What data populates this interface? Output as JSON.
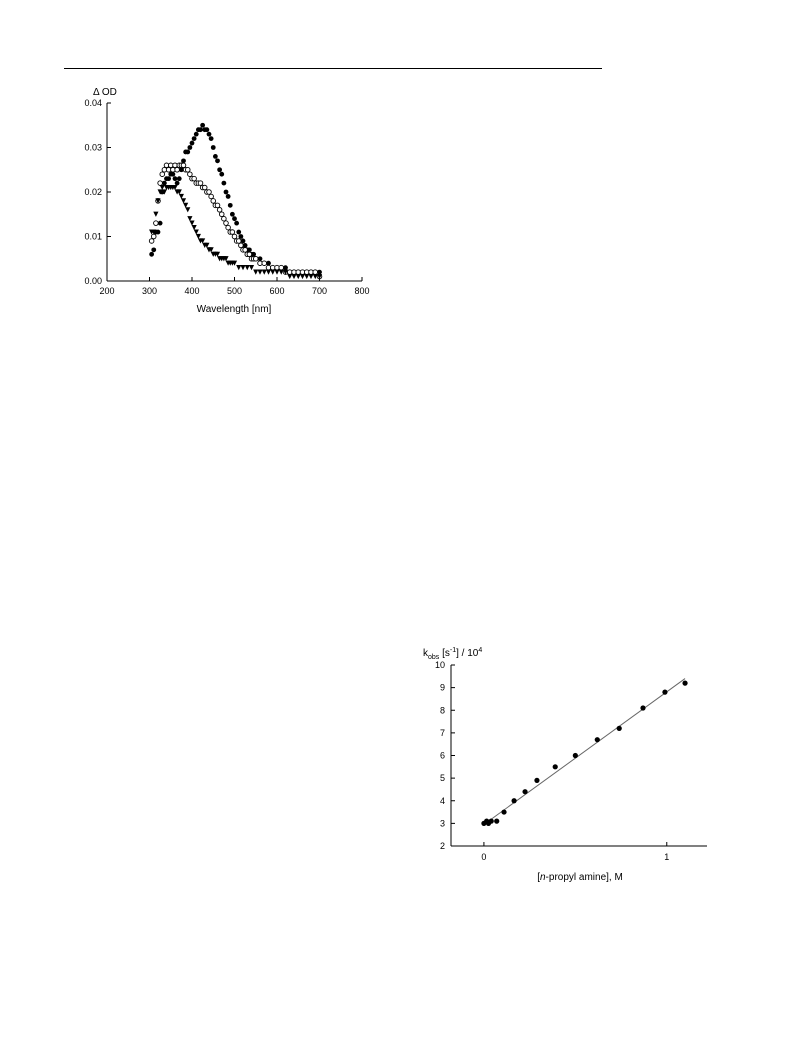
{
  "charts": [
    {
      "ylabel_prefix": "Δ OD",
      "xlabel": "Wavelength [nm]"
    },
    {
      "ylabel_base": "k",
      "ylabel_sub": "obs",
      "ylabel_mid": " [s",
      "ylabel_sup1": "-1",
      "ylabel_mid2": "] / 10",
      "ylabel_sup2": "4",
      "xlabel_pre": "[",
      "xlabel_italic": "n",
      "xlabel_post": "-propyl amine], M"
    }
  ],
  "chart_data": [
    {
      "type": "scatter",
      "title": "",
      "xlabel": "Wavelength [nm]",
      "ylabel": "Δ OD",
      "xlim": [
        200,
        800
      ],
      "ylim": [
        0.0,
        0.04
      ],
      "xticks": [
        "200",
        "300",
        "400",
        "500",
        "600",
        "700",
        "800"
      ],
      "yticks": [
        "0.00",
        "0.01",
        "0.02",
        "0.03",
        "0.04"
      ],
      "grid": false,
      "series": [
        {
          "marker": "filled-circle",
          "x": [
            305,
            310,
            315,
            320,
            325,
            330,
            335,
            340,
            345,
            350,
            355,
            360,
            365,
            370,
            375,
            380,
            385,
            390,
            395,
            400,
            405,
            410,
            415,
            420,
            425,
            430,
            435,
            440,
            445,
            450,
            455,
            460,
            465,
            470,
            475,
            480,
            485,
            490,
            495,
            500,
            505,
            510,
            515,
            520,
            525,
            530,
            535,
            540,
            545,
            550,
            560,
            570,
            580,
            590,
            600,
            610,
            620,
            630,
            640,
            650,
            660,
            670,
            680,
            690,
            700
          ],
          "y": [
            0.006,
            0.007,
            0.011,
            0.011,
            0.013,
            0.02,
            0.022,
            0.023,
            0.023,
            0.024,
            0.024,
            0.023,
            0.022,
            0.023,
            0.025,
            0.027,
            0.029,
            0.029,
            0.03,
            0.031,
            0.032,
            0.033,
            0.034,
            0.034,
            0.035,
            0.034,
            0.034,
            0.033,
            0.032,
            0.03,
            0.028,
            0.027,
            0.025,
            0.024,
            0.022,
            0.02,
            0.019,
            0.017,
            0.015,
            0.014,
            0.013,
            0.011,
            0.01,
            0.009,
            0.008,
            0.007,
            0.007,
            0.006,
            0.006,
            0.005,
            0.005,
            0.004,
            0.004,
            0.003,
            0.003,
            0.003,
            0.003,
            0.002,
            0.002,
            0.002,
            0.002,
            0.002,
            0.002,
            0.002,
            0.002
          ]
        },
        {
          "marker": "open-circle",
          "x": [
            305,
            310,
            315,
            320,
            325,
            330,
            335,
            340,
            345,
            350,
            355,
            360,
            365,
            370,
            375,
            380,
            385,
            390,
            395,
            400,
            405,
            410,
            415,
            420,
            425,
            430,
            435,
            440,
            445,
            450,
            455,
            460,
            465,
            470,
            475,
            480,
            485,
            490,
            495,
            500,
            505,
            510,
            515,
            520,
            525,
            530,
            535,
            540,
            545,
            550,
            560,
            570,
            580,
            590,
            600,
            610,
            620,
            630,
            640,
            650,
            660,
            670,
            680,
            690,
            700
          ],
          "y": [
            0.009,
            0.01,
            0.013,
            0.018,
            0.022,
            0.024,
            0.025,
            0.026,
            0.025,
            0.026,
            0.025,
            0.026,
            0.025,
            0.026,
            0.026,
            0.026,
            0.025,
            0.025,
            0.024,
            0.023,
            0.023,
            0.022,
            0.022,
            0.022,
            0.021,
            0.021,
            0.02,
            0.02,
            0.019,
            0.018,
            0.017,
            0.017,
            0.016,
            0.015,
            0.014,
            0.013,
            0.012,
            0.011,
            0.011,
            0.01,
            0.009,
            0.009,
            0.008,
            0.007,
            0.007,
            0.006,
            0.006,
            0.005,
            0.005,
            0.005,
            0.004,
            0.004,
            0.003,
            0.003,
            0.003,
            0.003,
            0.002,
            0.002,
            0.002,
            0.002,
            0.002,
            0.002,
            0.002,
            0.002,
            0.001
          ]
        },
        {
          "marker": "filled-triangle-down",
          "x": [
            305,
            310,
            315,
            320,
            325,
            330,
            335,
            340,
            345,
            350,
            355,
            360,
            365,
            370,
            375,
            380,
            385,
            390,
            395,
            400,
            405,
            410,
            415,
            420,
            425,
            430,
            435,
            440,
            445,
            450,
            455,
            460,
            465,
            470,
            475,
            480,
            485,
            490,
            495,
            500,
            510,
            520,
            530,
            540,
            550,
            560,
            570,
            580,
            590,
            600,
            610,
            620,
            630,
            640,
            650,
            660,
            670,
            680,
            690,
            700
          ],
          "y": [
            0.011,
            0.011,
            0.015,
            0.018,
            0.02,
            0.021,
            0.02,
            0.021,
            0.021,
            0.021,
            0.021,
            0.021,
            0.02,
            0.02,
            0.019,
            0.018,
            0.017,
            0.016,
            0.014,
            0.013,
            0.012,
            0.011,
            0.01,
            0.009,
            0.009,
            0.008,
            0.008,
            0.007,
            0.007,
            0.006,
            0.006,
            0.006,
            0.005,
            0.005,
            0.005,
            0.005,
            0.004,
            0.004,
            0.004,
            0.004,
            0.003,
            0.003,
            0.003,
            0.003,
            0.002,
            0.002,
            0.002,
            0.002,
            0.002,
            0.002,
            0.002,
            0.002,
            0.001,
            0.001,
            0.001,
            0.001,
            0.001,
            0.001,
            0.001,
            0.001
          ]
        }
      ]
    },
    {
      "type": "scatter",
      "title": "",
      "xlabel": "[n-propyl amine], M",
      "ylabel": "kobs [s-1] / 10^4",
      "xlim": [
        -0.18,
        1.22
      ],
      "ylim": [
        2,
        10
      ],
      "xticks": [
        "0",
        "1"
      ],
      "yticks": [
        "2",
        "3",
        "4",
        "5",
        "6",
        "7",
        "8",
        "9",
        "10"
      ],
      "grid": false,
      "series": [
        {
          "marker": "filled-circle",
          "x": [
            0.0,
            0.015,
            0.025,
            0.04,
            0.07,
            0.11,
            0.165,
            0.225,
            0.29,
            0.39,
            0.5,
            0.62,
            0.74,
            0.87,
            0.99,
            1.1
          ],
          "y": [
            3.0,
            3.1,
            3.0,
            3.1,
            3.1,
            3.5,
            4.0,
            4.4,
            4.9,
            5.5,
            6.0,
            6.7,
            7.2,
            8.1,
            8.8,
            9.2
          ]
        }
      ],
      "fit_line": {
        "x": [
          0.0,
          1.1
        ],
        "y": [
          2.95,
          9.4
        ]
      }
    }
  ]
}
